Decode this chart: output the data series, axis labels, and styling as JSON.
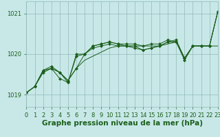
{
  "background_color": "#c8e8e8",
  "plot_bg_color": "#c8e8e8",
  "grid_color": "#90b8b8",
  "line_color": "#1a5e1a",
  "xlabel": "Graphe pression niveau de la mer (hPa)",
  "xlabel_fontsize": 7.5,
  "tick_fontsize": 6.0,
  "xlim": [
    0,
    23
  ],
  "ylim": [
    1018.7,
    1021.3
  ],
  "yticks": [
    1019,
    1020,
    1021
  ],
  "xticks": [
    0,
    1,
    2,
    3,
    4,
    5,
    6,
    7,
    8,
    9,
    10,
    11,
    12,
    13,
    14,
    15,
    16,
    17,
    18,
    19,
    20,
    21,
    22,
    23
  ],
  "series": [
    {
      "y": [
        1019.05,
        1019.2,
        1019.55,
        1019.65,
        1019.55,
        1019.35,
        1019.65,
        1019.85,
        1019.95,
        1020.05,
        1020.15,
        1020.2,
        1020.2,
        1020.2,
        1020.2,
        1020.2,
        1020.2,
        1020.25,
        1020.3,
        1019.9,
        1020.2,
        1020.2,
        1020.2,
        1020.2
      ],
      "marker": false
    },
    {
      "y": [
        1019.05,
        1019.2,
        1019.55,
        1019.65,
        1019.55,
        1019.35,
        1019.65,
        1020.0,
        1020.15,
        1020.2,
        1020.25,
        1020.2,
        1020.2,
        1020.15,
        1020.1,
        1020.15,
        1020.2,
        1020.3,
        1020.3,
        1019.9,
        1020.2,
        1020.2,
        1020.2,
        1021.05
      ],
      "marker": true
    },
    {
      "y": [
        1019.05,
        1019.2,
        1019.6,
        1019.65,
        1019.4,
        1019.3,
        1019.95,
        1020.0,
        1020.2,
        1020.25,
        1020.3,
        1020.25,
        1020.2,
        1020.2,
        1020.1,
        1020.15,
        1020.2,
        1020.3,
        1020.35,
        1019.9,
        1020.2,
        1020.2,
        1020.2,
        1021.05
      ],
      "marker": true
    },
    {
      "y": [
        1019.05,
        1019.2,
        1019.6,
        1019.7,
        1019.55,
        1019.3,
        1020.0,
        1020.0,
        1020.2,
        1020.25,
        1020.3,
        1020.25,
        1020.25,
        1020.25,
        1020.2,
        1020.25,
        1020.25,
        1020.35,
        1020.3,
        1019.85,
        1020.2,
        1020.2,
        1020.2,
        1021.05
      ],
      "marker": true
    }
  ]
}
